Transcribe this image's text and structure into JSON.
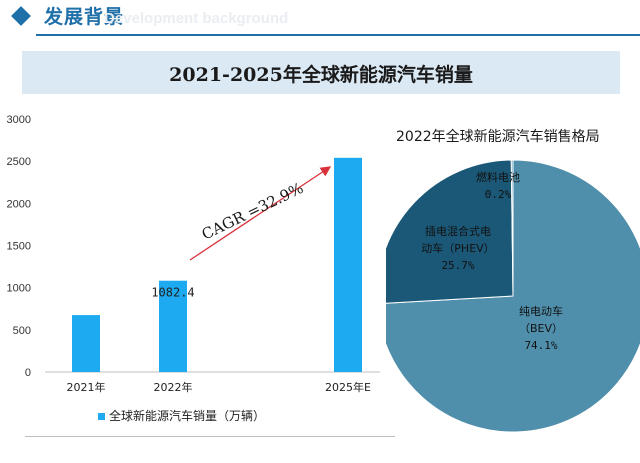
{
  "header": {
    "title": "发展背景",
    "subtitle": "Development background"
  },
  "chart_data": [
    {
      "type": "bar",
      "title": "2021-2025年全球新能源汽车销量",
      "categories": [
        "2021年",
        "2022年",
        "2025年E"
      ],
      "values": [
        675,
        1082.4,
        2540
      ],
      "data_labels": [
        "",
        "1082.4",
        ""
      ],
      "ylim": [
        0,
        3000
      ],
      "yticks": [
        0,
        500,
        1000,
        1500,
        2000,
        2500,
        3000
      ],
      "series_name": "全球新能源汽车销量（万辆）",
      "annotation": "CAGR =32.9%",
      "bar_color": "#1eaaf1",
      "legend_position": "bottom"
    },
    {
      "type": "pie",
      "title": "2022年全球新能源汽车销售格局",
      "slices": [
        {
          "label": "纯电动车\n（BEV）",
          "value": 74.1,
          "value_label": "74.1%",
          "color": "#4f8fab"
        },
        {
          "label": "插电混合式电\n动车（PHEV）",
          "value": 25.7,
          "value_label": "25.7%",
          "color": "#1b5877"
        },
        {
          "label": "燃料电池",
          "value": 0.2,
          "value_label": "0.2%",
          "color": "#5b9cbb"
        }
      ]
    }
  ],
  "colors": {
    "accent": "#1f6fa8",
    "bar": "#1eaaf1",
    "annotation_arrow": "#d9323a"
  }
}
